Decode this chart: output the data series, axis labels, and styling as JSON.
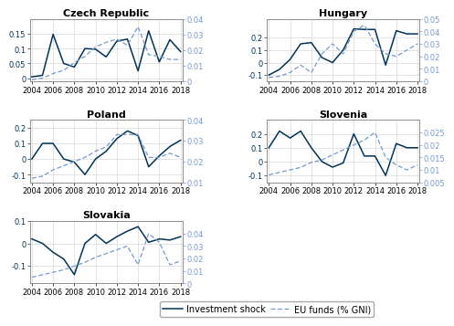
{
  "years": [
    2004,
    2005,
    2006,
    2007,
    2008,
    2009,
    2010,
    2011,
    2012,
    2013,
    2014,
    2015,
    2016,
    2017,
    2018
  ],
  "investment_shock": {
    "Czech Republic": [
      0.005,
      0.01,
      0.148,
      0.05,
      0.038,
      0.1,
      0.098,
      0.072,
      0.125,
      0.132,
      0.025,
      0.16,
      0.055,
      0.13,
      0.09
    ],
    "Hungary": [
      -0.1,
      -0.055,
      0.025,
      0.15,
      0.16,
      0.04,
      0.0,
      0.1,
      0.27,
      0.265,
      0.265,
      -0.02,
      0.255,
      0.23,
      0.23
    ],
    "Poland": [
      0.0,
      0.1,
      0.1,
      0.0,
      -0.02,
      -0.1,
      0.0,
      0.05,
      0.13,
      0.18,
      0.15,
      -0.05,
      0.02,
      0.08,
      0.12
    ],
    "Slovenia": [
      0.1,
      0.22,
      0.17,
      0.22,
      0.1,
      0.0,
      -0.04,
      -0.01,
      0.2,
      0.04,
      0.04,
      -0.1,
      0.13,
      0.1,
      0.1
    ],
    "Slovakia": [
      0.02,
      0.0,
      -0.04,
      -0.07,
      -0.14,
      0.0,
      0.04,
      0.0,
      0.03,
      0.055,
      0.075,
      0.005,
      0.02,
      0.015,
      0.03
    ]
  },
  "eu_funds": {
    "Czech Republic": [
      0.001,
      0.002,
      0.005,
      0.007,
      0.012,
      0.016,
      0.022,
      0.025,
      0.027,
      0.023,
      0.035,
      0.017,
      0.016,
      0.014,
      0.014
    ],
    "Hungary": [
      0.003,
      0.004,
      0.007,
      0.013,
      0.007,
      0.022,
      0.03,
      0.022,
      0.04,
      0.045,
      0.03,
      0.022,
      0.02,
      0.025,
      0.03
    ],
    "Poland": [
      0.012,
      0.013,
      0.016,
      0.018,
      0.02,
      0.022,
      0.025,
      0.027,
      0.033,
      0.033,
      0.033,
      0.022,
      0.022,
      0.024,
      0.022
    ],
    "Slovenia": [
      0.008,
      0.009,
      0.01,
      0.011,
      0.013,
      0.014,
      0.016,
      0.018,
      0.02,
      0.022,
      0.025,
      0.015,
      0.012,
      0.01,
      0.012
    ],
    "Slovakia": [
      0.005,
      0.007,
      0.009,
      0.011,
      0.014,
      0.017,
      0.021,
      0.024,
      0.027,
      0.03,
      0.015,
      0.04,
      0.033,
      0.015,
      0.018
    ]
  },
  "ylim_left": {
    "Czech Republic": [
      -0.01,
      0.2
    ],
    "Hungary": [
      -0.15,
      0.35
    ],
    "Poland": [
      -0.15,
      0.25
    ],
    "Slovenia": [
      -0.15,
      0.3
    ],
    "Slovakia": [
      -0.18,
      0.1
    ]
  },
  "ylim_right": {
    "Czech Republic": [
      0.0,
      0.04
    ],
    "Hungary": [
      0.0,
      0.05
    ],
    "Poland": [
      0.01,
      0.04
    ],
    "Slovenia": [
      0.005,
      0.03
    ],
    "Slovakia": [
      0.0,
      0.05
    ]
  },
  "yticks_left": {
    "Czech Republic": [
      0.0,
      0.05,
      0.1,
      0.15
    ],
    "Hungary": [
      -0.1,
      0.0,
      0.1,
      0.2
    ],
    "Poland": [
      -0.1,
      0.0,
      0.1,
      0.2
    ],
    "Slovenia": [
      -0.1,
      0.0,
      0.1,
      0.2
    ],
    "Slovakia": [
      -0.1,
      0.0,
      0.1
    ]
  },
  "yticks_right": {
    "Czech Republic": [
      0.0,
      0.01,
      0.02,
      0.03,
      0.04
    ],
    "Hungary": [
      0.0,
      0.01,
      0.02,
      0.03,
      0.04,
      0.05
    ],
    "Poland": [
      0.01,
      0.02,
      0.03,
      0.04
    ],
    "Slovenia": [
      0.005,
      0.01,
      0.015,
      0.02,
      0.025
    ],
    "Slovakia": [
      0.0,
      0.01,
      0.02,
      0.03,
      0.04
    ]
  },
  "xticks": [
    2004,
    2006,
    2008,
    2010,
    2012,
    2014,
    2016,
    2018
  ],
  "solid_color": "#003355",
  "dash_color": "#7799cc",
  "bg_color": "#ffffff",
  "grid_color": "#d0d0d0",
  "spine_color": "#888888",
  "title_fs": 8,
  "tick_fs": 6,
  "legend_fs": 7,
  "legend_labels": [
    "Investment shock",
    "EU funds (% GNI)"
  ]
}
